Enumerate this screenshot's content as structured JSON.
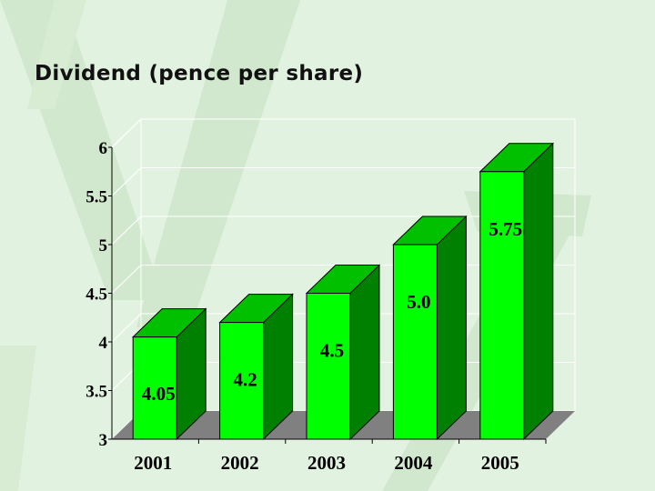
{
  "slide": {
    "title": "Dividend (pence per share)"
  },
  "colors": {
    "background": "#e2f2e0",
    "watermark": "#d2e8ce",
    "bar_front": "#00ff00",
    "bar_side": "#008000",
    "bar_top": "#00c000",
    "floor": "#808080",
    "gridline": "#ffffff"
  },
  "chart_data": {
    "type": "bar",
    "style": "3d",
    "title": "Dividend (pence per share)",
    "xlabel": "",
    "ylabel": "",
    "categories": [
      "2001",
      "2002",
      "2003",
      "2004",
      "2005"
    ],
    "values": [
      4.05,
      4.2,
      4.5,
      5.0,
      5.75
    ],
    "data_labels": [
      "4.05",
      "4.2",
      "4.5",
      "5.0",
      "5.75"
    ],
    "ylim": [
      3,
      6
    ],
    "yticks": [
      "3",
      "3.5",
      "4",
      "4.5",
      "5",
      "5.5",
      "6"
    ],
    "grid": true,
    "legend": "none"
  }
}
